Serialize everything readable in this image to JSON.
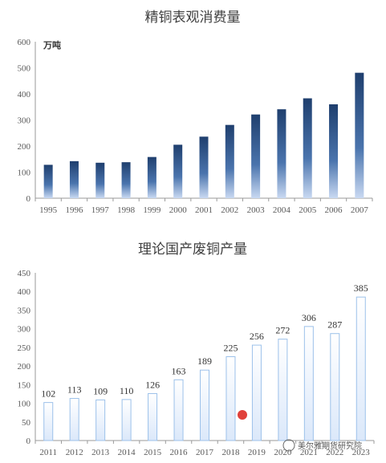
{
  "chart_data": [
    {
      "type": "bar",
      "title": "精铜表观消费量",
      "unit_label": "万吨",
      "categories": [
        "1995",
        "1996",
        "1997",
        "1998",
        "1999",
        "2000",
        "2001",
        "2002",
        "2003",
        "2004",
        "2005",
        "2006",
        "2007"
      ],
      "values": [
        128,
        142,
        136,
        138,
        158,
        205,
        236,
        281,
        321,
        341,
        383,
        360,
        481
      ],
      "ylim": [
        0,
        600
      ],
      "yticks": [
        0,
        100,
        200,
        300,
        400,
        500,
        600
      ],
      "grid": false,
      "colors": {
        "bar_top": "#1f3f6e",
        "bar_bottom": "#c9d9f2"
      }
    },
    {
      "type": "bar",
      "title": "理论国产废铜产量",
      "categories": [
        "2011",
        "2012",
        "2013",
        "2014",
        "2015",
        "2016",
        "2017",
        "2018",
        "2019",
        "2020",
        "2021",
        "2022",
        "2023"
      ],
      "values": [
        102,
        113,
        109,
        110,
        126,
        163,
        189,
        225,
        256,
        272,
        306,
        287,
        385
      ],
      "ylim": [
        0,
        450
      ],
      "yticks": [
        0,
        50,
        100,
        150,
        200,
        250,
        300,
        350,
        400,
        450
      ],
      "grid": false,
      "colors": {
        "bar_fill": "#dbe8fa",
        "bar_stroke": "#9cc1ea"
      }
    }
  ],
  "watermark": {
    "text": "美尔雅期货研究院"
  }
}
